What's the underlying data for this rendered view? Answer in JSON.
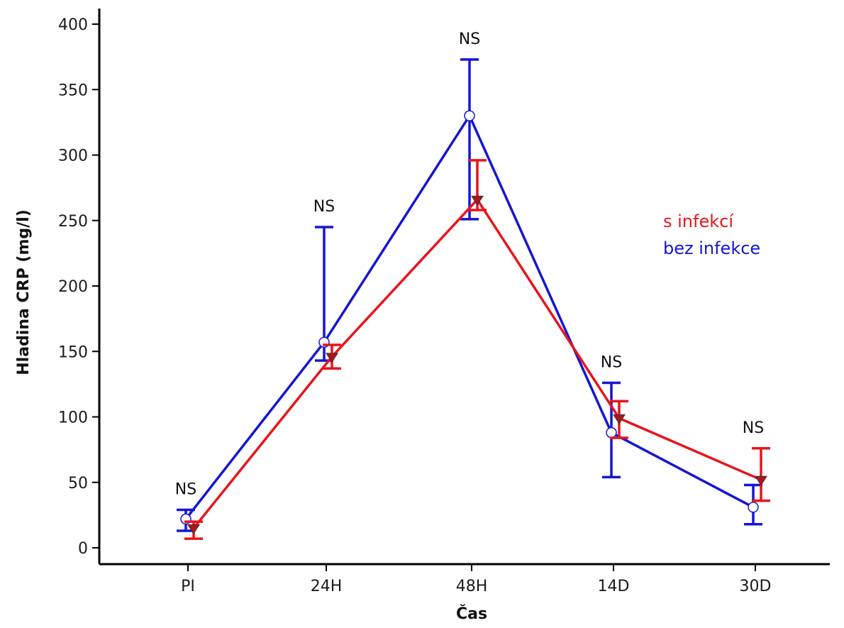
{
  "chart_data": {
    "type": "line",
    "xlabel": "Čas",
    "ylabel": "Hladina CRP (mg/l)",
    "categories": [
      "PI",
      "24H",
      "48H",
      "14D",
      "30D"
    ],
    "ylim": [
      0,
      400
    ],
    "yticks": [
      0,
      50,
      100,
      150,
      200,
      250,
      300,
      350,
      400
    ],
    "grid": false,
    "legend_position": "right",
    "annotations": [
      "NS",
      "NS",
      "NS",
      "NS",
      "NS"
    ],
    "series": [
      {
        "name": "s infekcí",
        "color": "#e8141b",
        "marker": "down-triangle",
        "values": [
          15,
          146,
          266,
          99,
          52
        ],
        "error_low": [
          7,
          137,
          258,
          84,
          36
        ],
        "error_high": [
          20,
          155,
          296,
          112,
          76
        ]
      },
      {
        "name": "bez infekce",
        "color": "#1515d4",
        "marker": "open-circle",
        "values": [
          22,
          157,
          330,
          88,
          31
        ],
        "error_low": [
          13,
          143,
          251,
          54,
          18
        ],
        "error_high": [
          29,
          245,
          373,
          126,
          48
        ]
      }
    ]
  }
}
